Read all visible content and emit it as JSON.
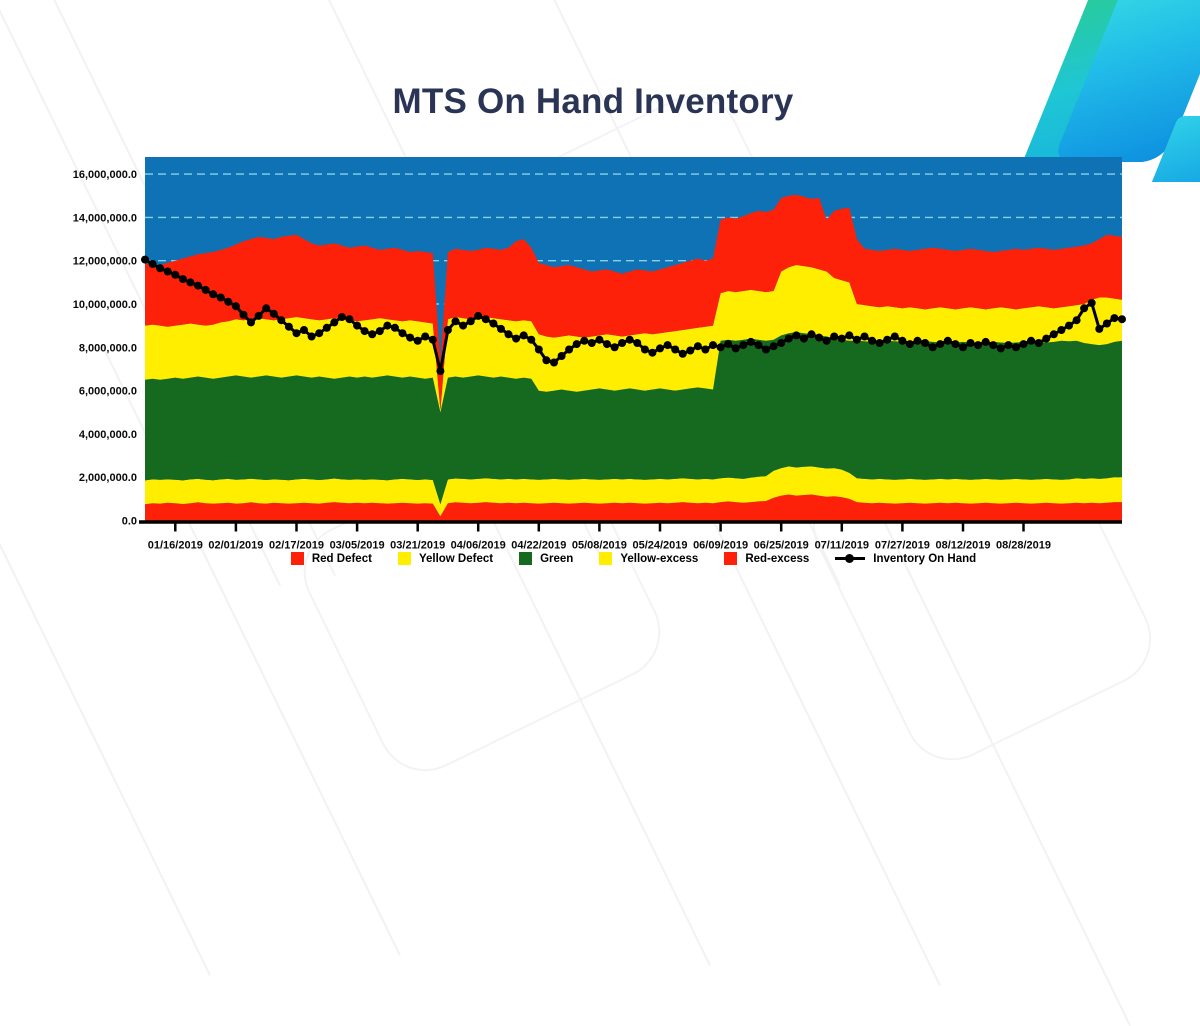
{
  "title": "MTS On Hand Inventory",
  "y_axis": {
    "tick_values_millions": [
      0,
      2,
      4,
      6,
      8,
      10,
      12,
      14,
      16
    ],
    "tick_labels": [
      "0.0",
      "2,000,000.0",
      "4,000,000.0",
      "6,000,000.0",
      "8,000,000.0",
      "10,000,000.0",
      "12,000,000.0",
      "14,000,000.0",
      "16,000,000.0"
    ]
  },
  "x_axis": {
    "tick_labels": [
      "01/16/2019",
      "02/01/2019",
      "02/17/2019",
      "03/05/2019",
      "03/21/2019",
      "04/06/2019",
      "04/22/2019",
      "05/08/2019",
      "05/24/2019",
      "06/09/2019",
      "06/25/2019",
      "07/11/2019",
      "07/27/2019",
      "08/12/2019",
      "08/28/2019"
    ],
    "tick_day_offsets": [
      8,
      24,
      40,
      56,
      72,
      88,
      104,
      120,
      136,
      152,
      168,
      184,
      200,
      216,
      232
    ],
    "total_days": 258
  },
  "legend": [
    {
      "label": "Red Defect",
      "marker": "square",
      "color": "#fc2108"
    },
    {
      "label": "Yellow Defect",
      "marker": "square",
      "color": "#ffee00"
    },
    {
      "label": "Green",
      "marker": "square",
      "color": "#166a1f"
    },
    {
      "label": "Yellow-excess",
      "marker": "square",
      "color": "#ffee00"
    },
    {
      "label": "Red-excess",
      "marker": "square",
      "color": "#fc2108"
    },
    {
      "label": "Inventory On Hand",
      "marker": "line",
      "color": "#000000"
    }
  ],
  "colors": {
    "plot_background_blue": "#0e72b5",
    "red": "#fc2108",
    "yellow": "#ffee00",
    "green": "#166a1f",
    "line_black": "#000000",
    "title_navy": "#2a3454",
    "gridline": "#8ed9e8",
    "ribbon_teal": "#2bcc8e",
    "ribbon_cyan": "#38dfe4",
    "ribbon_blue": "#0d8fe0"
  },
  "chart_data": {
    "type": "area",
    "stacked": true,
    "unit": "millions",
    "x_start_date_estimated": "01/08/2019",
    "x_step_days": 2,
    "n_points": 130,
    "ylim": [
      0,
      16.77
    ],
    "gridlines": {
      "values": [
        2,
        4,
        6,
        8,
        10,
        12,
        14,
        16
      ],
      "style": "dashed",
      "color": "#8ed9e8"
    },
    "plot_background": "#0e72b5",
    "values_are_cumulative_tops": true,
    "series": [
      {
        "name": "Red Defect",
        "color": "#fc2108",
        "cumulative_top": [
          0.75,
          0.8,
          0.78,
          0.82,
          0.8,
          0.76,
          0.8,
          0.84,
          0.8,
          0.78,
          0.8,
          0.82,
          0.78,
          0.8,
          0.84,
          0.8,
          0.78,
          0.82,
          0.8,
          0.78,
          0.8,
          0.82,
          0.8,
          0.78,
          0.82,
          0.85,
          0.82,
          0.8,
          0.82,
          0.8,
          0.82,
          0.8,
          0.78,
          0.8,
          0.82,
          0.8,
          0.78,
          0.8,
          0.78,
          0.2,
          0.8,
          0.84,
          0.82,
          0.8,
          0.82,
          0.85,
          0.82,
          0.8,
          0.82,
          0.8,
          0.82,
          0.8,
          0.78,
          0.8,
          0.82,
          0.8,
          0.78,
          0.8,
          0.82,
          0.8,
          0.78,
          0.8,
          0.82,
          0.8,
          0.82,
          0.8,
          0.78,
          0.8,
          0.82,
          0.8,
          0.82,
          0.85,
          0.82,
          0.8,
          0.82,
          0.8,
          0.85,
          0.88,
          0.85,
          0.82,
          0.85,
          0.88,
          0.9,
          1.05,
          1.15,
          1.2,
          1.15,
          1.18,
          1.2,
          1.15,
          1.1,
          1.12,
          1.08,
          1.0,
          0.85,
          0.82,
          0.8,
          0.82,
          0.8,
          0.78,
          0.8,
          0.82,
          0.8,
          0.78,
          0.8,
          0.82,
          0.8,
          0.82,
          0.8,
          0.78,
          0.8,
          0.82,
          0.8,
          0.78,
          0.8,
          0.82,
          0.8,
          0.78,
          0.8,
          0.82,
          0.8,
          0.78,
          0.8,
          0.82,
          0.8,
          0.82,
          0.8,
          0.82,
          0.85,
          0.85
        ]
      },
      {
        "name": "Yellow Defect",
        "color": "#ffee00",
        "cumulative_top": [
          1.85,
          1.9,
          1.88,
          1.9,
          1.88,
          1.85,
          1.9,
          1.92,
          1.88,
          1.86,
          1.9,
          1.92,
          1.88,
          1.9,
          1.93,
          1.9,
          1.87,
          1.9,
          1.88,
          1.86,
          1.9,
          1.92,
          1.9,
          1.87,
          1.9,
          1.94,
          1.9,
          1.88,
          1.9,
          1.88,
          1.9,
          1.88,
          1.86,
          1.9,
          1.92,
          1.9,
          1.87,
          1.9,
          1.87,
          0.75,
          1.9,
          1.94,
          1.92,
          1.9,
          1.92,
          1.95,
          1.92,
          1.9,
          1.92,
          1.9,
          1.92,
          1.9,
          1.88,
          1.9,
          1.92,
          1.9,
          1.88,
          1.9,
          1.92,
          1.9,
          1.88,
          1.9,
          1.92,
          1.9,
          1.92,
          1.9,
          1.88,
          1.9,
          1.92,
          1.9,
          1.92,
          1.95,
          1.92,
          1.9,
          1.92,
          1.9,
          1.95,
          1.98,
          1.95,
          1.92,
          1.98,
          2.02,
          2.05,
          2.3,
          2.42,
          2.5,
          2.45,
          2.48,
          2.5,
          2.45,
          2.4,
          2.42,
          2.35,
          2.2,
          1.95,
          1.92,
          1.9,
          1.92,
          1.9,
          1.88,
          1.9,
          1.92,
          1.9,
          1.88,
          1.9,
          1.92,
          1.9,
          1.92,
          1.9,
          1.88,
          1.9,
          1.92,
          1.9,
          1.88,
          1.9,
          1.92,
          1.9,
          1.88,
          1.9,
          1.92,
          1.9,
          1.88,
          1.9,
          1.95,
          1.92,
          1.95,
          1.92,
          1.95,
          2.0,
          2.0
        ]
      },
      {
        "name": "Green",
        "color": "#166a1f",
        "cumulative_top": [
          6.5,
          6.55,
          6.5,
          6.55,
          6.6,
          6.55,
          6.6,
          6.65,
          6.6,
          6.55,
          6.6,
          6.65,
          6.7,
          6.65,
          6.6,
          6.65,
          6.7,
          6.65,
          6.6,
          6.65,
          6.7,
          6.65,
          6.6,
          6.65,
          6.6,
          6.55,
          6.6,
          6.65,
          6.6,
          6.65,
          6.6,
          6.65,
          6.7,
          6.65,
          6.6,
          6.65,
          6.6,
          6.55,
          6.6,
          5.0,
          6.6,
          6.65,
          6.6,
          6.65,
          6.7,
          6.65,
          6.6,
          6.65,
          6.6,
          6.55,
          6.6,
          6.55,
          6.0,
          5.95,
          6.0,
          6.05,
          6.0,
          5.95,
          6.0,
          6.05,
          6.1,
          6.05,
          6.0,
          6.05,
          6.1,
          6.05,
          6.0,
          6.05,
          6.1,
          6.05,
          6.0,
          6.05,
          6.1,
          6.15,
          6.1,
          6.05,
          8.3,
          8.35,
          8.3,
          8.35,
          8.4,
          8.35,
          8.3,
          8.35,
          8.55,
          8.65,
          8.7,
          8.65,
          8.6,
          8.55,
          8.5,
          8.4,
          8.35,
          8.3,
          8.3,
          8.28,
          8.25,
          8.28,
          8.3,
          8.28,
          8.25,
          8.22,
          8.25,
          8.28,
          8.25,
          8.22,
          8.2,
          8.22,
          8.25,
          8.22,
          8.2,
          8.22,
          8.25,
          8.22,
          8.2,
          8.22,
          8.25,
          8.28,
          8.25,
          8.22,
          8.25,
          8.3,
          8.28,
          8.3,
          8.2,
          8.15,
          8.1,
          8.15,
          8.25,
          8.3
        ]
      },
      {
        "name": "Yellow-excess",
        "color": "#ffee00",
        "cumulative_top": [
          9.0,
          9.05,
          9.0,
          8.95,
          9.0,
          9.05,
          9.1,
          9.05,
          9.0,
          9.05,
          9.15,
          9.2,
          9.3,
          9.25,
          9.3,
          9.35,
          9.3,
          9.25,
          9.3,
          9.35,
          9.4,
          9.35,
          9.3,
          9.25,
          9.3,
          9.35,
          9.3,
          9.25,
          9.2,
          9.25,
          9.3,
          9.35,
          9.3,
          9.25,
          9.2,
          9.25,
          9.2,
          9.15,
          9.1,
          5.1,
          9.3,
          9.4,
          9.35,
          9.3,
          9.35,
          9.4,
          9.35,
          9.3,
          9.25,
          9.2,
          9.25,
          9.2,
          8.6,
          8.5,
          8.45,
          8.5,
          8.55,
          8.5,
          8.45,
          8.5,
          8.55,
          8.6,
          8.55,
          8.5,
          8.55,
          8.6,
          8.65,
          8.6,
          8.65,
          8.7,
          8.75,
          8.8,
          8.85,
          8.9,
          8.95,
          9.0,
          10.5,
          10.6,
          10.55,
          10.6,
          10.65,
          10.6,
          10.55,
          10.6,
          11.5,
          11.7,
          11.8,
          11.75,
          11.7,
          11.6,
          11.5,
          11.2,
          11.1,
          11.0,
          10.0,
          9.95,
          9.9,
          9.85,
          9.9,
          9.85,
          9.8,
          9.85,
          9.8,
          9.75,
          9.8,
          9.85,
          9.8,
          9.75,
          9.8,
          9.85,
          9.8,
          9.75,
          9.8,
          9.85,
          9.8,
          9.75,
          9.8,
          9.85,
          9.9,
          9.85,
          9.8,
          9.85,
          9.9,
          9.95,
          10.0,
          10.2,
          10.3,
          10.3,
          10.25,
          10.2
        ]
      },
      {
        "name": "Red-excess",
        "color": "#fc2108",
        "cumulative_top": [
          11.9,
          11.75,
          11.8,
          11.9,
          12.0,
          12.1,
          12.2,
          12.3,
          12.35,
          12.4,
          12.5,
          12.6,
          12.75,
          12.9,
          13.0,
          13.1,
          13.05,
          13.0,
          13.1,
          13.15,
          13.2,
          13.0,
          12.8,
          12.7,
          12.75,
          12.8,
          12.7,
          12.6,
          12.65,
          12.7,
          12.6,
          12.5,
          12.55,
          12.6,
          12.5,
          12.4,
          12.45,
          12.4,
          12.35,
          7.3,
          12.4,
          12.55,
          12.5,
          12.45,
          12.5,
          12.6,
          12.55,
          12.5,
          12.6,
          12.9,
          13.0,
          12.6,
          11.9,
          11.8,
          11.7,
          11.75,
          11.8,
          11.7,
          11.6,
          11.5,
          11.55,
          11.6,
          11.5,
          11.4,
          11.5,
          11.6,
          11.55,
          11.5,
          11.6,
          11.7,
          11.8,
          11.9,
          12.0,
          12.1,
          12.0,
          12.1,
          13.9,
          14.0,
          13.95,
          14.05,
          14.2,
          14.3,
          14.25,
          14.35,
          14.9,
          15.0,
          15.05,
          14.95,
          14.85,
          14.9,
          13.9,
          14.3,
          14.4,
          14.45,
          13.0,
          12.55,
          12.5,
          12.45,
          12.5,
          12.55,
          12.5,
          12.45,
          12.5,
          12.55,
          12.6,
          12.55,
          12.5,
          12.45,
          12.5,
          12.55,
          12.5,
          12.45,
          12.4,
          12.45,
          12.5,
          12.55,
          12.5,
          12.55,
          12.6,
          12.55,
          12.5,
          12.55,
          12.6,
          12.65,
          12.7,
          12.8,
          13.0,
          13.2,
          13.15,
          13.1
        ]
      }
    ],
    "line": {
      "name": "Inventory On Hand",
      "color": "#000000",
      "values": [
        12.05,
        11.85,
        11.65,
        11.5,
        11.35,
        11.15,
        11.0,
        10.85,
        10.65,
        10.45,
        10.3,
        10.1,
        9.9,
        9.5,
        9.15,
        9.45,
        9.8,
        9.55,
        9.25,
        8.95,
        8.65,
        8.8,
        8.5,
        8.65,
        8.9,
        9.15,
        9.4,
        9.3,
        9.0,
        8.75,
        8.6,
        8.75,
        9.0,
        8.9,
        8.65,
        8.45,
        8.3,
        8.5,
        8.35,
        6.9,
        8.8,
        9.2,
        9.0,
        9.2,
        9.45,
        9.3,
        9.1,
        8.85,
        8.6,
        8.4,
        8.55,
        8.35,
        7.9,
        7.4,
        7.3,
        7.6,
        7.9,
        8.15,
        8.3,
        8.2,
        8.35,
        8.15,
        8.0,
        8.2,
        8.35,
        8.2,
        7.9,
        7.75,
        7.95,
        8.1,
        7.9,
        7.7,
        7.85,
        8.05,
        7.9,
        8.1,
        8.0,
        8.15,
        7.95,
        8.1,
        8.25,
        8.1,
        7.9,
        8.05,
        8.2,
        8.4,
        8.55,
        8.4,
        8.6,
        8.45,
        8.3,
        8.5,
        8.4,
        8.55,
        8.35,
        8.5,
        8.3,
        8.2,
        8.35,
        8.5,
        8.3,
        8.15,
        8.3,
        8.2,
        8.0,
        8.15,
        8.3,
        8.15,
        8.0,
        8.2,
        8.1,
        8.25,
        8.1,
        7.95,
        8.1,
        8.0,
        8.15,
        8.3,
        8.2,
        8.4,
        8.6,
        8.8,
        9.0,
        9.25,
        9.8,
        10.05,
        8.85,
        9.1,
        9.35,
        9.3
      ]
    }
  }
}
